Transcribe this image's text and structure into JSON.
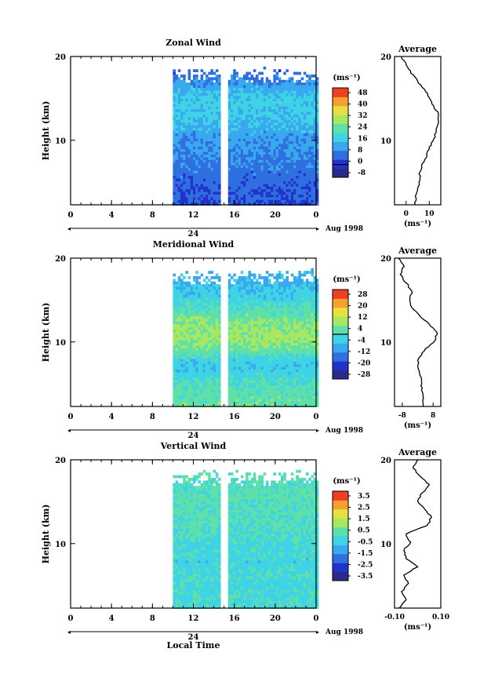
{
  "shared": {
    "ylabel": "Height (km)",
    "avg_title": "Average",
    "avg_unit": "(ms⁻¹)",
    "cbar_unit": "(ms⁻¹)",
    "date_label": "24",
    "month_label": "Aug 1998",
    "xlabel": "Local Time",
    "x_ticks": [
      "0",
      "4",
      "8",
      "12",
      "16",
      "20",
      "0"
    ],
    "y_ticks": [
      "20",
      "10"
    ]
  },
  "chart_data": [
    {
      "type": "heatmap",
      "title": "Zonal Wind",
      "xlabel": "Local Time",
      "ylabel": "Height (km)",
      "x_ticks": [
        "0",
        "4",
        "8",
        "12",
        "16",
        "20",
        "0"
      ],
      "xlim_hours": [
        0,
        24
      ],
      "ylim_km": [
        2,
        20
      ],
      "data_start_hour": 10,
      "data_gap_hours": [
        14.8,
        15.2
      ],
      "colorbar": {
        "unit": "(ms⁻¹)",
        "ticks": [
          "48",
          "40",
          "32",
          "24",
          "16",
          "8",
          "0",
          "-8"
        ],
        "min": -8,
        "max": 48,
        "zero_line": 0
      },
      "profile_levels_km": [
        2,
        3,
        4,
        5,
        6,
        7,
        8,
        9,
        10,
        11,
        12,
        13,
        14,
        15,
        16,
        17,
        18,
        19,
        20
      ],
      "field_values": [
        3,
        4,
        4,
        5,
        6,
        7,
        8,
        9,
        10,
        11,
        13,
        15,
        16,
        17,
        15,
        12,
        8,
        5,
        4
      ],
      "average": {
        "title": "Average",
        "xlim": [
          -5,
          15
        ],
        "x_ticks": [
          "0",
          "10"
        ],
        "height_km": [
          2,
          3,
          4,
          5,
          6,
          7,
          8,
          9,
          10,
          11,
          12,
          13,
          14,
          15,
          16,
          17,
          18,
          19,
          20
        ],
        "values": [
          4,
          4,
          5,
          6,
          6,
          7,
          9,
          10,
          12,
          13,
          14,
          14,
          12,
          10,
          8,
          5,
          2,
          0,
          -2
        ]
      }
    },
    {
      "type": "heatmap",
      "title": "Meridional Wind",
      "xlabel": "Local Time",
      "ylabel": "Height (km)",
      "x_ticks": [
        "0",
        "4",
        "8",
        "12",
        "16",
        "20",
        "0"
      ],
      "xlim_hours": [
        0,
        24
      ],
      "ylim_km": [
        2,
        20
      ],
      "data_start_hour": 10,
      "data_gap_hours": [
        14.8,
        15.2
      ],
      "colorbar": {
        "unit": "(ms⁻¹)",
        "ticks": [
          "28",
          "20",
          "12",
          "4",
          "-4",
          "-12",
          "-20",
          "-28"
        ],
        "min": -28,
        "max": 28,
        "zero_line": 0
      },
      "profile_levels_km": [
        2,
        3,
        4,
        5,
        6,
        7,
        8,
        9,
        10,
        11,
        12,
        13,
        14,
        15,
        16,
        17,
        18,
        19,
        20
      ],
      "field_values": [
        3,
        3,
        2,
        1,
        -2,
        -4,
        -3,
        2,
        6,
        8,
        7,
        5,
        2,
        0,
        -3,
        -5,
        -7,
        -8,
        -6
      ],
      "average": {
        "title": "Average",
        "xlim": [
          -12,
          12
        ],
        "x_ticks": [
          "-8",
          "8"
        ],
        "height_km": [
          2,
          3,
          4,
          5,
          6,
          7,
          8,
          9,
          10,
          11,
          12,
          13,
          14,
          15,
          16,
          17,
          18,
          19,
          20
        ],
        "values": [
          3,
          3,
          2,
          2,
          1,
          0,
          1,
          4,
          9,
          10,
          6,
          1,
          -3,
          -4,
          -3,
          -6,
          -9,
          -7,
          -10
        ]
      }
    },
    {
      "type": "heatmap",
      "title": "Vertical Wind",
      "xlabel": "Local Time",
      "ylabel": "Height (km)",
      "x_ticks": [
        "0",
        "4",
        "8",
        "12",
        "16",
        "20",
        "0"
      ],
      "xlim_hours": [
        0,
        24
      ],
      "ylim_km": [
        2,
        20
      ],
      "data_start_hour": 10,
      "data_gap_hours": [
        14.8,
        15.2
      ],
      "colorbar": {
        "unit": "(ms⁻¹)",
        "ticks": [
          "3.5",
          "2.5",
          "1.5",
          "0.5",
          "-0.5",
          "-1.5",
          "-2.5",
          "-3.5"
        ],
        "min": -4,
        "max": 4,
        "zero_line": null
      },
      "profile_levels_km": [
        2,
        3,
        4,
        5,
        6,
        7,
        8,
        9,
        10,
        11,
        12,
        13,
        14,
        15,
        16,
        17,
        18,
        19,
        20
      ],
      "field_values": [
        -0.2,
        -0.1,
        -0.2,
        -0.3,
        -0.1,
        -0.2,
        -0.4,
        -0.2,
        -0.3,
        -0.1,
        0,
        0.1,
        0.2,
        0.1,
        0.3,
        0.2,
        0.1,
        0.2,
        0.1
      ],
      "average": {
        "title": "Average",
        "xlim": [
          -0.1,
          0.1
        ],
        "x_ticks": [
          "-0.10",
          "0.10"
        ],
        "height_km": [
          2,
          3,
          4,
          5,
          6,
          7,
          8,
          9,
          10,
          11,
          12,
          13,
          14,
          15,
          16,
          17,
          18,
          19,
          20
        ],
        "values": [
          -0.08,
          -0.05,
          -0.07,
          -0.04,
          -0.06,
          0.0,
          -0.05,
          -0.06,
          -0.03,
          -0.05,
          0.04,
          0.06,
          0.03,
          0.0,
          0.02,
          0.05,
          0.01,
          -0.02,
          0.0
        ]
      }
    }
  ]
}
